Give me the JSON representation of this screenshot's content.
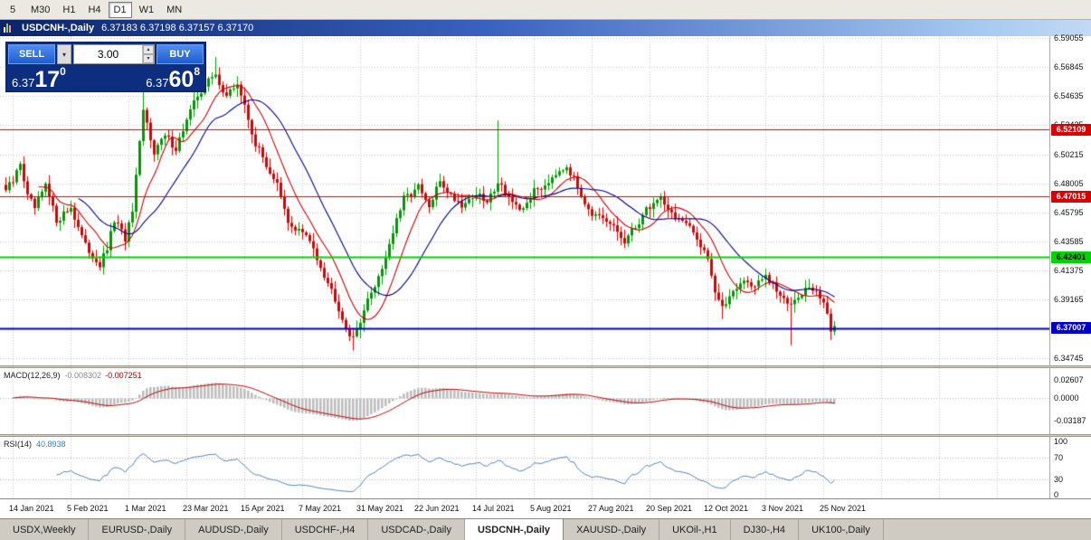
{
  "toolbar": {
    "timeframes": [
      {
        "label": "5",
        "active": false
      },
      {
        "label": "M30",
        "active": false
      },
      {
        "label": "H1",
        "active": false
      },
      {
        "label": "H4",
        "active": false
      },
      {
        "label": "D1",
        "active": true
      },
      {
        "label": "W1",
        "active": false
      },
      {
        "label": "MN",
        "active": false
      }
    ]
  },
  "title_bar": {
    "symbol": "USDCNH-,Daily",
    "quotes": "6.37183 6.37198 6.37157 6.37170"
  },
  "trade_panel": {
    "sell_label": "SELL",
    "buy_label": "BUY",
    "volume": "3.00",
    "sell_price_small": "6.37",
    "sell_price_big": "17",
    "sell_price_sup": "0",
    "buy_price_small": "6.37",
    "buy_price_big": "60",
    "buy_price_sup": "8"
  },
  "macd": {
    "name": "MACD(12,26,9)",
    "value_text": "-0.008302",
    "signal_text": "-0.007251",
    "axis_text": [
      "0.02607",
      "0.0000",
      "-0.03187"
    ],
    "axis_values": [
      0.02607,
      0.0,
      -0.03187
    ]
  },
  "rsi": {
    "name": "RSI(14)",
    "value_text": "40.8938",
    "axis_values": [
      100,
      70,
      30,
      0
    ]
  },
  "tabs": [
    {
      "label": "USDX,Weekly",
      "active": false
    },
    {
      "label": "EURUSD-,Daily",
      "active": false
    },
    {
      "label": "AUDUSD-,Daily",
      "active": false
    },
    {
      "label": "USDCHF-,H4",
      "active": false
    },
    {
      "label": "USDCAD-,Daily",
      "active": false
    },
    {
      "label": "USDCNH-,Daily",
      "active": true
    },
    {
      "label": "XAUUSD-,Daily",
      "active": false
    },
    {
      "label": "UKOil-,H1",
      "active": false
    },
    {
      "label": "DJ30-,H4",
      "active": false
    },
    {
      "label": "UK100-,Daily",
      "active": false
    }
  ],
  "chart_data": {
    "type": "candlestick",
    "symbol": "USDCNH-",
    "timeframe": "Daily",
    "quote": {
      "open": 6.37183,
      "high": 6.37198,
      "low": 6.37157,
      "close": 6.3717
    },
    "sell_price": 6.3717,
    "buy_price": 6.37608,
    "price_range": [
      6.3417,
      6.5919
    ],
    "price_axis_ticks": [
      6.59055,
      6.56845,
      6.54635,
      6.52425,
      6.50215,
      6.48005,
      6.45795,
      6.43585,
      6.41375,
      6.39165,
      6.36955,
      6.34745
    ],
    "hlines": [
      {
        "price": 6.52109,
        "label": "6.52109",
        "color": "#d80000",
        "text_color": "#ffffff",
        "width": 1.2
      },
      {
        "price": 6.47015,
        "label": "6.47015",
        "color": "#d80000",
        "text_color": "#ffffff",
        "width": 1.2
      },
      {
        "price": 6.42401,
        "label": "6.42401",
        "color": "#00d400",
        "text_color": "#000000",
        "width": 1.8
      },
      {
        "price": 6.37007,
        "label": "6.37007",
        "color": "#0000c8",
        "text_color": "#ffffff",
        "width": 2.2
      }
    ],
    "candle_count": 230,
    "close_anchors": [
      [
        0,
        6.475
      ],
      [
        2,
        6.481
      ],
      [
        4,
        6.496
      ],
      [
        6,
        6.47
      ],
      [
        8,
        6.461
      ],
      [
        11,
        6.478
      ],
      [
        14,
        6.452
      ],
      [
        18,
        6.462
      ],
      [
        22,
        6.432
      ],
      [
        26,
        6.418
      ],
      [
        28,
        6.43
      ],
      [
        30,
        6.452
      ],
      [
        33,
        6.438
      ],
      [
        35,
        6.458
      ],
      [
        38,
        6.535
      ],
      [
        41,
        6.505
      ],
      [
        44,
        6.516
      ],
      [
        47,
        6.507
      ],
      [
        50,
        6.528
      ],
      [
        53,
        6.547
      ],
      [
        56,
        6.558
      ],
      [
        58,
        6.562
      ],
      [
        61,
        6.546
      ],
      [
        64,
        6.556
      ],
      [
        66,
        6.538
      ],
      [
        69,
        6.51
      ],
      [
        72,
        6.494
      ],
      [
        75,
        6.479
      ],
      [
        78,
        6.449
      ],
      [
        82,
        6.443
      ],
      [
        85,
        6.431
      ],
      [
        88,
        6.411
      ],
      [
        91,
        6.393
      ],
      [
        94,
        6.371
      ],
      [
        96,
        6.361
      ],
      [
        98,
        6.377
      ],
      [
        101,
        6.397
      ],
      [
        104,
        6.416
      ],
      [
        107,
        6.443
      ],
      [
        110,
        6.468
      ],
      [
        114,
        6.477
      ],
      [
        117,
        6.461
      ],
      [
        120,
        6.482
      ],
      [
        123,
        6.471
      ],
      [
        126,
        6.464
      ],
      [
        130,
        6.472
      ],
      [
        133,
        6.465
      ],
      [
        136,
        6.482
      ],
      [
        139,
        6.47
      ],
      [
        142,
        6.457
      ],
      [
        146,
        6.474
      ],
      [
        149,
        6.479
      ],
      [
        152,
        6.489
      ],
      [
        155,
        6.494
      ],
      [
        158,
        6.477
      ],
      [
        162,
        6.457
      ],
      [
        165,
        6.451
      ],
      [
        168,
        6.447
      ],
      [
        171,
        6.435
      ],
      [
        174,
        6.447
      ],
      [
        177,
        6.46
      ],
      [
        181,
        6.47
      ],
      [
        184,
        6.457
      ],
      [
        187,
        6.451
      ],
      [
        190,
        6.442
      ],
      [
        193,
        6.43
      ],
      [
        194,
        6.424
      ],
      [
        196,
        6.398
      ],
      [
        198,
        6.384
      ],
      [
        201,
        6.4
      ],
      [
        204,
        6.406
      ],
      [
        207,
        6.402
      ],
      [
        210,
        6.409
      ],
      [
        213,
        6.398
      ],
      [
        216,
        6.388
      ],
      [
        219,
        6.396
      ],
      [
        222,
        6.401
      ],
      [
        226,
        6.391
      ],
      [
        227,
        6.381
      ],
      [
        228,
        6.368
      ],
      [
        229,
        6.372
      ]
    ],
    "wick_overrides": {
      "38": {
        "high": 6.553
      },
      "58": {
        "high": 6.576
      },
      "96": {
        "low": 6.353
      },
      "136": {
        "high": 6.528
      },
      "198": {
        "low": 6.377
      },
      "217": {
        "low": 6.357
      },
      "228": {
        "low": 6.361
      }
    },
    "ma": [
      {
        "period": 10,
        "color": "#cc0000"
      },
      {
        "period": 21,
        "color": "#00008b"
      }
    ],
    "macd_params": [
      12,
      26,
      9
    ],
    "macd_range": [
      -0.052,
      0.043
    ],
    "macd_hist_color": "#bdbdbd",
    "macd_signal_color": "#c00000",
    "rsi_period": 14,
    "rsi_levels": [
      70,
      30
    ],
    "rsi_color": "#4f81bd",
    "up_color": "#009a00",
    "down_color": "#dd0000",
    "grid_color": "#c9c9c9",
    "time_labels": [
      "14 Jan 2021",
      "5 Feb 2021",
      "1 Mar 2021",
      "23 Mar 2021",
      "15 Apr 2021",
      "7 May 2021",
      "31 May 2021",
      "22 Jun 2021",
      "14 Jul 2021",
      "5 Aug 2021",
      "27 Aug 2021",
      "20 Sep 2021",
      "12 Oct 2021",
      "3 Nov 2021",
      "25 Nov 2021"
    ]
  }
}
